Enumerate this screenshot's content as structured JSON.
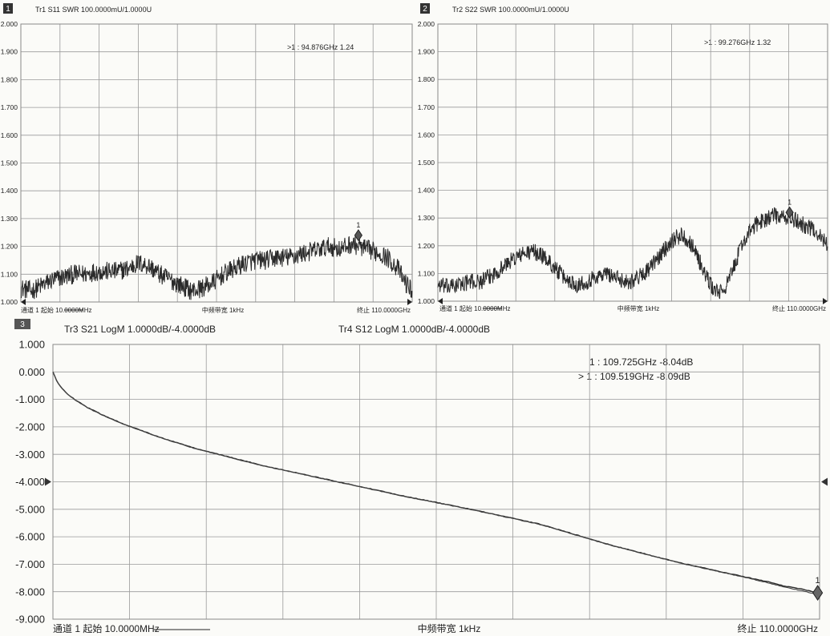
{
  "panels": {
    "p1": {
      "number": "1",
      "title": "Tr1 S11 SWR 100.0000mU/1.0000U",
      "marker_readout": ">1 : 94.876GHz    1.24",
      "footer_left": "通道 1 起始 10.0000MHz",
      "footer_center": "中频带宽 1kHz",
      "footer_right": "终止 110.0000GHz",
      "marker_label": "1"
    },
    "p2": {
      "number": "2",
      "title": "Tr2 S22 SWR 100.0000mU/1.0000U",
      "marker_readout": ">1 : 99.276GHz    1.32",
      "footer_left": "通道 1 起始 10.0000MHz",
      "footer_center": "中频带宽 1kHz",
      "footer_right": "终止 110.0000GHz",
      "marker_label": "1"
    },
    "p3": {
      "number": "3",
      "title_left": "Tr3 S21 LogM 1.0000dB/-4.0000dB",
      "title_right": "Tr4 S12 LogM 1.0000dB/-4.0000dB",
      "marker_readout_1": "1  : 109.725GHz    -8.04dB",
      "marker_readout_2": "> 1  : 109.519GHz    -8.09dB",
      "footer_left": "通道 1 起始 10.0000MHz",
      "footer_center": "中频带宽 1kHz",
      "footer_right": "终止 110.0000GHz",
      "marker_label": "1"
    }
  },
  "colors": {
    "trace": "#2a2a2a",
    "grid": "#9a9a9a",
    "background": "#fbfbf8"
  },
  "chart_data": [
    {
      "type": "line",
      "title": "Tr1 S11 SWR 100.0000mU/1.0000U",
      "ylim": [
        1.0,
        2.0
      ],
      "yticks": [
        "1.000",
        "1.100",
        "1.200",
        "1.300",
        "1.400",
        "1.500",
        "1.600",
        "1.700",
        "1.800",
        "1.900",
        "2.000"
      ],
      "xlim_ghz": [
        0.01,
        110.0
      ],
      "series": [
        {
          "x_ghz": [
            0.01,
            3,
            6,
            9,
            12,
            15,
            18,
            21,
            24,
            27,
            30,
            33,
            36,
            39,
            42,
            45,
            48,
            51,
            54,
            57,
            60,
            63,
            66,
            69,
            72,
            75,
            78,
            81,
            84,
            87,
            90,
            93,
            95,
            97,
            100,
            103,
            106,
            108,
            110
          ],
          "values": [
            1.05,
            1.04,
            1.06,
            1.08,
            1.09,
            1.1,
            1.1,
            1.11,
            1.11,
            1.11,
            1.12,
            1.14,
            1.13,
            1.1,
            1.08,
            1.06,
            1.04,
            1.05,
            1.07,
            1.1,
            1.12,
            1.14,
            1.15,
            1.15,
            1.16,
            1.16,
            1.17,
            1.18,
            1.19,
            1.2,
            1.19,
            1.21,
            1.2,
            1.19,
            1.18,
            1.16,
            1.12,
            1.07,
            1.04
          ],
          "noise_pp": 0.035
        }
      ],
      "markers": [
        {
          "label": "1",
          "x_ghz": 94.876,
          "y": 1.24
        }
      ]
    },
    {
      "type": "line",
      "title": "Tr2 S22 SWR 100.0000mU/1.0000U",
      "ylim": [
        1.0,
        2.0
      ],
      "yticks": [
        "1.000",
        "1.100",
        "1.200",
        "1.300",
        "1.400",
        "1.500",
        "1.600",
        "1.700",
        "1.800",
        "1.900",
        "2.000"
      ],
      "xlim_ghz": [
        0.01,
        110.0
      ],
      "series": [
        {
          "x_ghz": [
            0.01,
            3,
            6,
            9,
            12,
            15,
            18,
            21,
            24,
            27,
            30,
            33,
            36,
            39,
            42,
            45,
            48,
            51,
            54,
            57,
            60,
            63,
            66,
            69,
            72,
            74,
            76,
            78,
            80,
            82,
            84,
            86,
            88,
            90,
            93,
            95,
            97,
            99,
            101,
            104,
            107,
            110
          ],
          "values": [
            1.06,
            1.05,
            1.06,
            1.07,
            1.07,
            1.09,
            1.12,
            1.15,
            1.17,
            1.18,
            1.16,
            1.12,
            1.08,
            1.06,
            1.07,
            1.09,
            1.1,
            1.08,
            1.07,
            1.09,
            1.12,
            1.17,
            1.22,
            1.24,
            1.2,
            1.14,
            1.08,
            1.04,
            1.03,
            1.07,
            1.14,
            1.21,
            1.25,
            1.28,
            1.3,
            1.31,
            1.3,
            1.3,
            1.29,
            1.27,
            1.25,
            1.2
          ],
          "noise_pp": 0.03
        }
      ],
      "markers": [
        {
          "label": "1",
          "x_ghz": 99.276,
          "y": 1.32
        }
      ]
    },
    {
      "type": "line",
      "title": "Tr3 S21 LogM 1.0000dB/-4.0000dB",
      "ylim": [
        -9.0,
        1.0
      ],
      "yticks": [
        "1.000",
        "0.000",
        "-1.000",
        "-2.000",
        "-3.000",
        "-4.000",
        "-5.000",
        "-6.000",
        "-7.000",
        "-8.000",
        "-9.000"
      ],
      "xlim_ghz": [
        0.01,
        110.0
      ],
      "series": [
        {
          "name": "Tr3 S21",
          "x_ghz": [
            0.01,
            0.5,
            1,
            2,
            3,
            5,
            7,
            10,
            15,
            20,
            25,
            30,
            40,
            50,
            60,
            70,
            80,
            90,
            100,
            103,
            105,
            107,
            109.725,
            110
          ],
          "values": [
            0.0,
            -0.3,
            -0.5,
            -0.78,
            -0.98,
            -1.3,
            -1.55,
            -1.88,
            -2.35,
            -2.75,
            -3.08,
            -3.4,
            -3.95,
            -4.5,
            -5.0,
            -5.55,
            -6.3,
            -6.95,
            -7.5,
            -7.66,
            -7.8,
            -7.88,
            -8.04,
            -8.05
          ]
        },
        {
          "name": "Tr4 S12",
          "x_ghz": [
            0.01,
            0.5,
            1,
            2,
            3,
            5,
            7,
            10,
            15,
            20,
            25,
            30,
            40,
            50,
            60,
            70,
            80,
            90,
            100,
            103,
            105,
            107,
            109.519,
            110
          ],
          "values": [
            0.0,
            -0.31,
            -0.51,
            -0.79,
            -0.99,
            -1.31,
            -1.56,
            -1.89,
            -2.36,
            -2.76,
            -3.09,
            -3.41,
            -3.96,
            -4.51,
            -5.01,
            -5.56,
            -6.31,
            -6.96,
            -7.52,
            -7.7,
            -7.84,
            -7.94,
            -8.09,
            -8.1
          ]
        }
      ],
      "reference_level": -4.0,
      "markers": [
        {
          "label": "1",
          "x_ghz": 109.725,
          "y": -8.04
        },
        {
          "label": "1",
          "x_ghz": 109.519,
          "y": -8.09
        }
      ]
    }
  ]
}
